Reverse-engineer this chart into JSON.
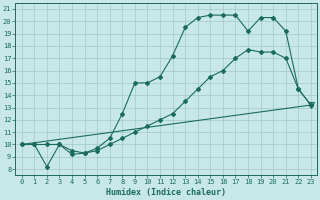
{
  "xlabel": "Humidex (Indice chaleur)",
  "background_color": "#c8e8e8",
  "grid_color": "#a0c8c8",
  "line_color": "#1a6b5a",
  "xlim": [
    -0.5,
    23.5
  ],
  "ylim": [
    7.5,
    21.5
  ],
  "xticks": [
    0,
    1,
    2,
    3,
    4,
    5,
    6,
    7,
    8,
    9,
    10,
    11,
    12,
    13,
    14,
    15,
    16,
    17,
    18,
    19,
    20,
    21,
    22,
    23
  ],
  "yticks": [
    8,
    9,
    10,
    11,
    12,
    13,
    14,
    15,
    16,
    17,
    18,
    19,
    20,
    21
  ],
  "line1_x": [
    0,
    1,
    2,
    3,
    4,
    5,
    6,
    7,
    8,
    9,
    10,
    11,
    12,
    13,
    14,
    15,
    16,
    17,
    18,
    19,
    20,
    21,
    22,
    23
  ],
  "line1_y": [
    10,
    10,
    8.2,
    10,
    9.2,
    9.3,
    9.7,
    10.5,
    12.5,
    15,
    15,
    15.5,
    17.2,
    19.5,
    20.3,
    20.5,
    20.5,
    20.5,
    19.2,
    20.3,
    20.3,
    19.2,
    14.5,
    13.2
  ],
  "line2_x": [
    0,
    1,
    2,
    3,
    4,
    5,
    6,
    7,
    8,
    9,
    10,
    11,
    12,
    13,
    14,
    15,
    16,
    17,
    18,
    19,
    20,
    21,
    22,
    23
  ],
  "line2_y": [
    10,
    10,
    10,
    10,
    9.5,
    9.3,
    9.5,
    10.0,
    10.5,
    11.0,
    11.5,
    12.0,
    12.5,
    13.5,
    14.5,
    15.5,
    16.0,
    17.0,
    17.7,
    17.5,
    17.5,
    17.0,
    14.5,
    13.2
  ],
  "line3_x": [
    0,
    23
  ],
  "line3_y": [
    10,
    13.2
  ],
  "triangle_x": 23,
  "triangle_y": 13.2
}
